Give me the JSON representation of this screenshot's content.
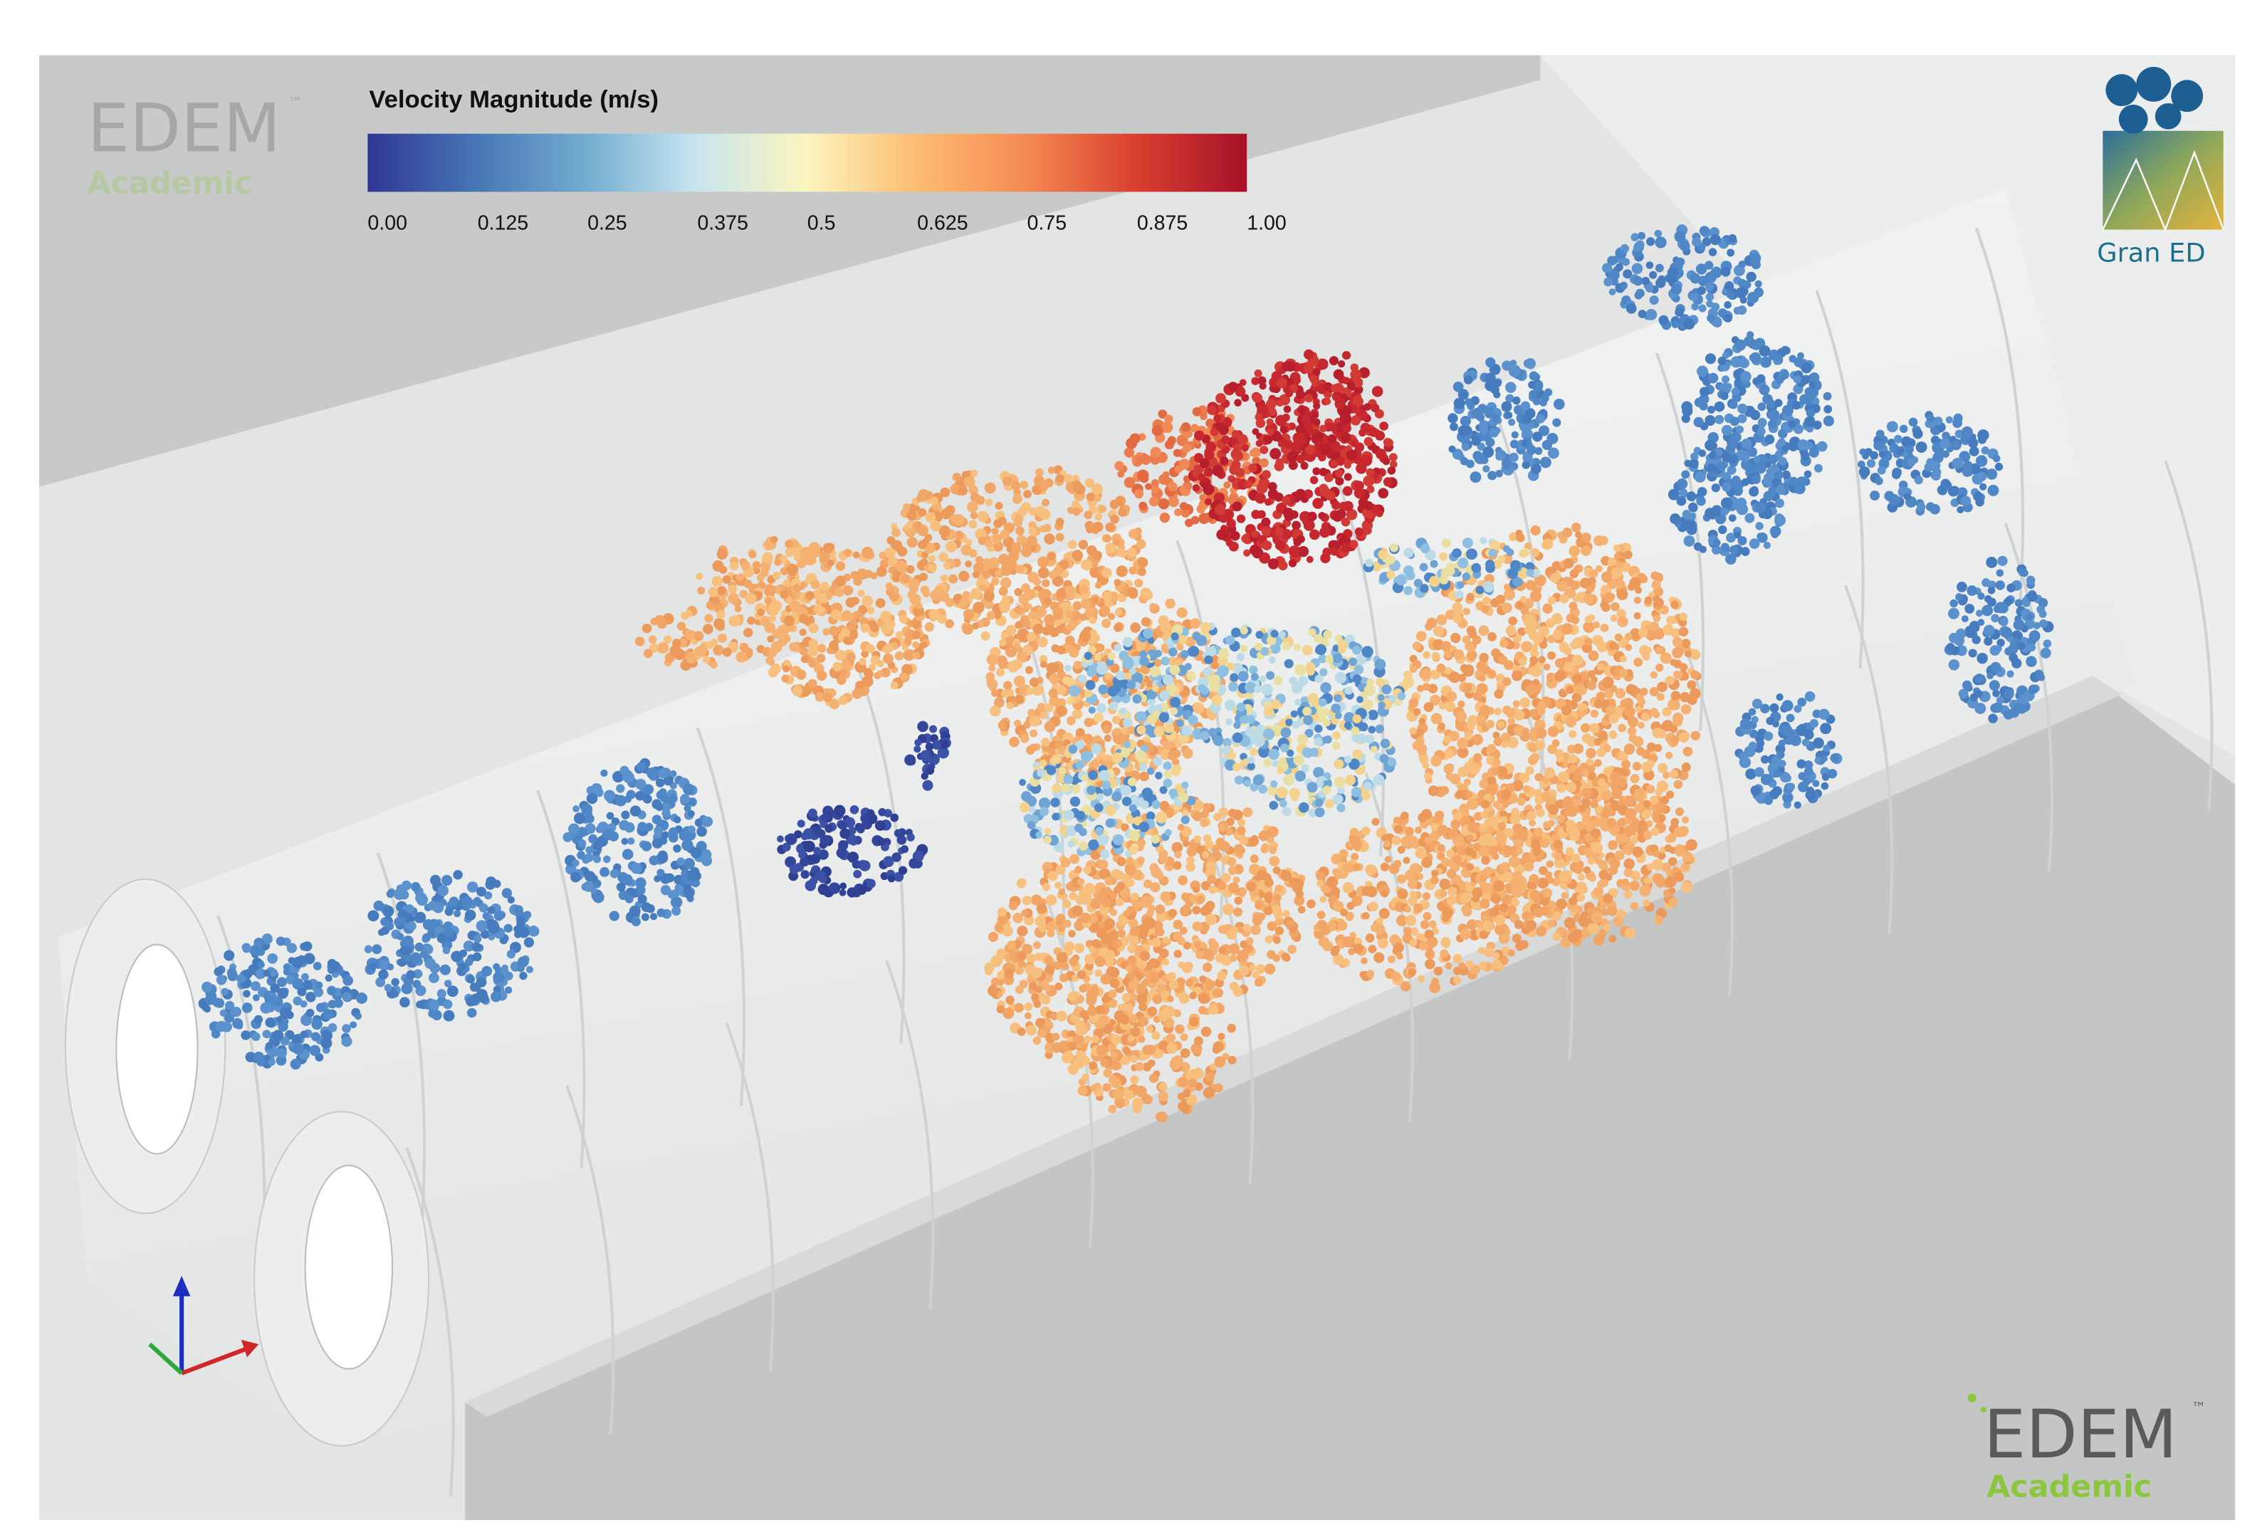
{
  "colorbar": {
    "title": "Velocity Magnitude (m/s)",
    "ticks": [
      {
        "value": 0,
        "label": "0.00"
      },
      0.125,
      0.25,
      0.375,
      0.5,
      0.625,
      0.75,
      0.875,
      {
        "value": 1,
        "label": "1.00"
      }
    ]
  },
  "logos": {
    "top_left": {
      "name": "EDEM",
      "mark": "™",
      "sub": "Academic"
    },
    "bottom_right": {
      "name": "EDEM",
      "mark": "™",
      "sub": "Academic"
    },
    "top_right": {
      "name": "Gran ED"
    }
  }
}
